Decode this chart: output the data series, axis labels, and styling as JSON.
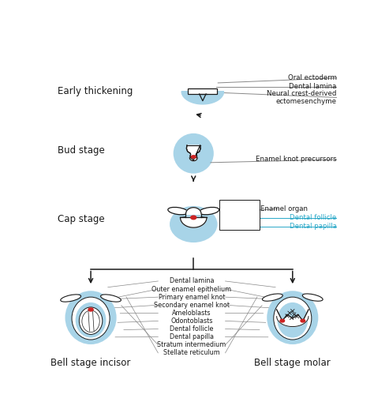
{
  "bg_color": "#ffffff",
  "light_blue": "#a8d4e8",
  "dark_outline": "#1a1a1a",
  "red_color": "#cc2222",
  "cyan_color": "#29a8c8",
  "gray_line": "#888888",
  "stage_labels": {
    "early": "Early thickening",
    "bud": "Bud stage",
    "cap": "Cap stage",
    "bell_incisor": "Bell stage incisor",
    "bell_molar": "Bell stage molar"
  },
  "early_labels": [
    "Oral ectoderm",
    "Dental lamina",
    "Neural crest-derived\nectomesenchyme"
  ],
  "bud_label": "Enamel knot precursors",
  "cap_labels": [
    "Enamel organ",
    "Dental follicle",
    "Dental papilla"
  ],
  "bell_labels": [
    "Dental lamina",
    "Outer enamel epithelium",
    "Primary enamel knot",
    "Secondary enamel knot",
    "Ameloblasts",
    "Odontoblasts",
    "Dental follicle",
    "Dental papilla",
    "Stratum intermedium",
    "Stellate reticulum"
  ]
}
